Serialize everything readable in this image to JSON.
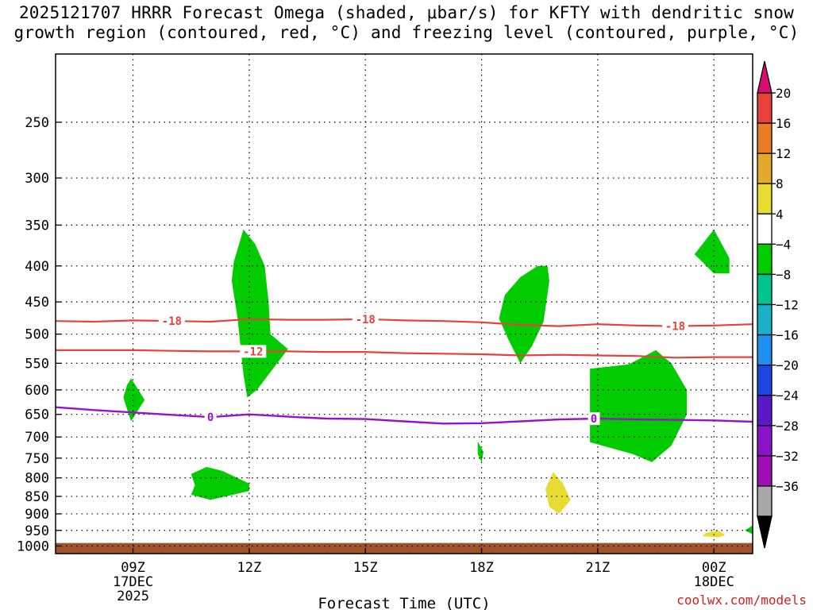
{
  "title": {
    "line1": "2025121707 HRRR Forecast Omega (shaded, μbar/s) for KFTY with dendritic snow",
    "line2": "growth region (contoured, red, °C) and freezing level (contoured, purple, °C)"
  },
  "credit": "coolwx.com/models",
  "chart_data": {
    "type": "time-height cross section",
    "xlabel": "Forecast Time (UTC)",
    "x_range_hours": [
      7,
      25
    ],
    "x_ticks": [
      {
        "hour": 9,
        "label": "09Z",
        "sub1": "17DEC",
        "sub2": "2025"
      },
      {
        "hour": 12,
        "label": "12Z",
        "sub1": "",
        "sub2": ""
      },
      {
        "hour": 15,
        "label": "15Z",
        "sub1": "",
        "sub2": ""
      },
      {
        "hour": 18,
        "label": "18Z",
        "sub1": "",
        "sub2": ""
      },
      {
        "hour": 21,
        "label": "21Z",
        "sub1": "",
        "sub2": ""
      },
      {
        "hour": 24,
        "label": "00Z",
        "sub1": "18DEC",
        "sub2": ""
      }
    ],
    "y_scale": "log pressure (hPa), inverted",
    "y_range_hpa": [
      200,
      1025
    ],
    "y_ticks": [
      250,
      300,
      350,
      400,
      450,
      500,
      550,
      600,
      650,
      700,
      750,
      800,
      850,
      900,
      950,
      1000
    ],
    "grid": "dotted",
    "ground_level_hpa": 990,
    "dgz_contours": [
      {
        "label": "-18",
        "color": "#e8413c",
        "points": [
          [
            7,
            479
          ],
          [
            8,
            480
          ],
          [
            9,
            478
          ],
          [
            10,
            479
          ],
          [
            11,
            480
          ],
          [
            12,
            476
          ],
          [
            13,
            477
          ],
          [
            14,
            477
          ],
          [
            15,
            476
          ],
          [
            16,
            478
          ],
          [
            17,
            479
          ],
          [
            18,
            481
          ],
          [
            19,
            485
          ],
          [
            20,
            487
          ],
          [
            21,
            484
          ],
          [
            22,
            486
          ],
          [
            23,
            487
          ],
          [
            24,
            486
          ],
          [
            25,
            484
          ]
        ],
        "label_hours": [
          10,
          15,
          23
        ]
      },
      {
        "label": "-12",
        "color": "#e8413c",
        "points": [
          [
            7,
            527
          ],
          [
            8,
            527
          ],
          [
            9,
            527
          ],
          [
            10,
            528
          ],
          [
            11,
            529
          ],
          [
            12,
            529
          ],
          [
            13,
            529
          ],
          [
            14,
            530
          ],
          [
            15,
            530
          ],
          [
            16,
            532
          ],
          [
            17,
            533
          ],
          [
            18,
            534
          ],
          [
            19,
            536
          ],
          [
            20,
            535
          ],
          [
            21,
            536
          ],
          [
            22,
            537
          ],
          [
            23,
            540
          ],
          [
            24,
            539
          ],
          [
            25,
            539
          ]
        ],
        "label_hours": [
          12.1
        ]
      }
    ],
    "freezing_level": {
      "label": "0",
      "color": "#9a12c8",
      "points": [
        [
          7,
          635
        ],
        [
          8,
          641
        ],
        [
          9,
          646
        ],
        [
          10,
          651
        ],
        [
          11,
          656
        ],
        [
          12,
          650
        ],
        [
          13,
          655
        ],
        [
          14,
          659
        ],
        [
          15,
          660
        ],
        [
          16,
          665
        ],
        [
          17,
          670
        ],
        [
          18,
          669
        ],
        [
          19,
          665
        ],
        [
          20,
          661
        ],
        [
          21,
          659
        ],
        [
          22,
          661
        ],
        [
          23,
          662
        ],
        [
          24,
          663
        ],
        [
          25,
          666
        ]
      ],
      "label_hours": [
        11,
        20.9
      ]
    },
    "omega_regions": [
      {
        "value": -6,
        "color": "#00cc00",
        "poly": [
          [
            11.85,
            355
          ],
          [
            12.15,
            372
          ],
          [
            12.4,
            400
          ],
          [
            12.5,
            450
          ],
          [
            12.55,
            500
          ],
          [
            13.0,
            525
          ],
          [
            12.2,
            600
          ],
          [
            11.95,
            615
          ],
          [
            11.85,
            570
          ],
          [
            11.7,
            475
          ],
          [
            11.55,
            420
          ],
          [
            11.6,
            395
          ]
        ]
      },
      {
        "value": -6,
        "color": "#00cc00",
        "poly": [
          [
            8.95,
            578
          ],
          [
            9.1,
            595
          ],
          [
            9.3,
            620
          ],
          [
            9.1,
            645
          ],
          [
            8.95,
            665
          ],
          [
            8.85,
            640
          ],
          [
            8.75,
            615
          ],
          [
            8.85,
            590
          ]
        ]
      },
      {
        "value": -6,
        "color": "#00cc00",
        "poly": [
          [
            10.5,
            790
          ],
          [
            10.9,
            772
          ],
          [
            11.3,
            782
          ],
          [
            12.0,
            815
          ],
          [
            12.0,
            835
          ],
          [
            11.0,
            860
          ],
          [
            10.5,
            845
          ],
          [
            10.6,
            820
          ]
        ]
      },
      {
        "value": -6,
        "color": "#00cc00",
        "poly": [
          [
            19.45,
            400
          ],
          [
            19.7,
            400
          ],
          [
            19.75,
            420
          ],
          [
            19.6,
            480
          ],
          [
            19.3,
            520
          ],
          [
            19.0,
            550
          ],
          [
            18.7,
            510
          ],
          [
            18.45,
            475
          ],
          [
            18.6,
            440
          ],
          [
            19.0,
            415
          ]
        ]
      },
      {
        "value": -6,
        "color": "#00cc00",
        "poly": [
          [
            17.9,
            710
          ],
          [
            18.05,
            735
          ],
          [
            18.0,
            760
          ],
          [
            17.9,
            740
          ]
        ]
      },
      {
        "value": -6,
        "color": "#00cc00",
        "poly": [
          [
            21.8,
            552
          ],
          [
            22.5,
            527
          ],
          [
            22.9,
            550
          ],
          [
            23.3,
            600
          ],
          [
            23.3,
            650
          ],
          [
            22.9,
            720
          ],
          [
            22.4,
            760
          ],
          [
            21.9,
            740
          ],
          [
            20.8,
            712
          ],
          [
            20.8,
            560
          ]
        ]
      },
      {
        "value": -6,
        "color": "#00cc00",
        "poly": [
          [
            24.0,
            355
          ],
          [
            24.4,
            390
          ],
          [
            24.4,
            410
          ],
          [
            24.0,
            410
          ],
          [
            23.5,
            385
          ]
        ]
      },
      {
        "value": -6,
        "color": "#00cc00",
        "poly": [
          [
            25.0,
            935
          ],
          [
            25.0,
            962
          ],
          [
            24.8,
            950
          ]
        ]
      },
      {
        "value": 4,
        "color": "#e6dc32",
        "poly": [
          [
            19.85,
            785
          ],
          [
            20.1,
            815
          ],
          [
            20.3,
            860
          ],
          [
            20.0,
            900
          ],
          [
            19.75,
            880
          ],
          [
            19.65,
            830
          ]
        ]
      },
      {
        "value": 4,
        "color": "#e6dc32",
        "poly": [
          [
            23.8,
            958
          ],
          [
            24.1,
            950
          ],
          [
            24.3,
            965
          ],
          [
            24.1,
            972
          ],
          [
            23.7,
            968
          ]
        ]
      }
    ],
    "colorbar": {
      "levels": [
        20,
        16,
        12,
        8,
        4,
        -4,
        -8,
        -12,
        -16,
        -20,
        -24,
        -28,
        -32,
        -36
      ],
      "colors": [
        "#d90d6e",
        "#e8413c",
        "#ea7b27",
        "#e2a92c",
        "#e6dc32",
        "#ffffff",
        "#00cc00",
        "#00c48f",
        "#1ab0c8",
        "#1e8ef0",
        "#1c46e0",
        "#5a18c8",
        "#8a12c8",
        "#a10cb8",
        "#a8a8a8",
        "#000000"
      ]
    }
  }
}
